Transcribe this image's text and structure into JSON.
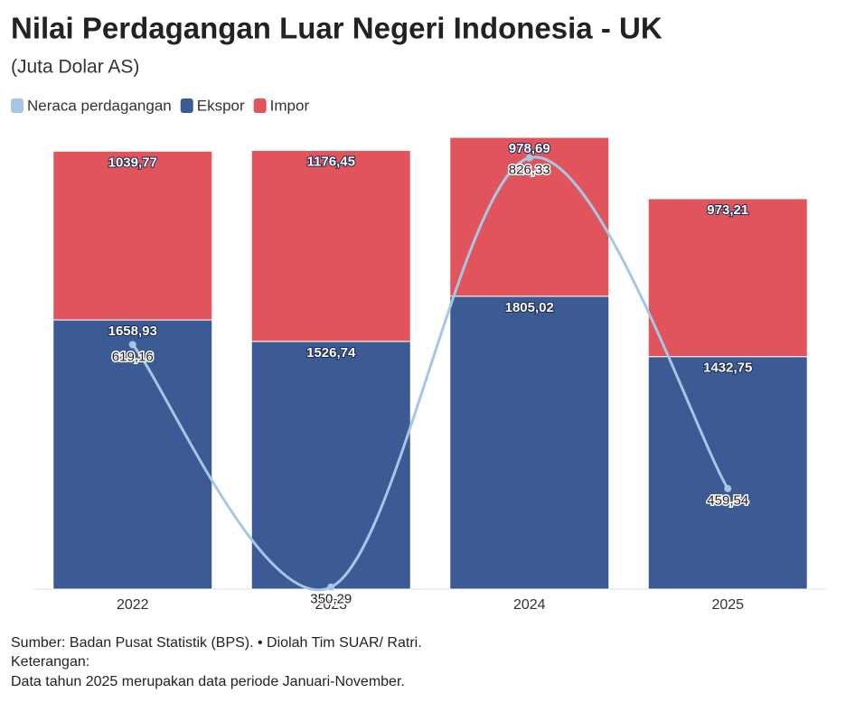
{
  "chart_data": {
    "type": "bar",
    "stacked": true,
    "title": "Nilai Perdagangan Luar Negeri Indonesia - UK",
    "subtitle": "(Juta Dolar AS)",
    "categories": [
      "2022",
      "2023",
      "2024",
      "2025"
    ],
    "series": [
      {
        "name": "Neraca perdagangan",
        "type": "line",
        "axis": "y2",
        "color": "#a6c6e6",
        "values": [
          619.16,
          350.29,
          826.33,
          459.54
        ],
        "value_labels": [
          "619,16",
          "350,29",
          "826,33",
          "459,54"
        ]
      },
      {
        "name": "Ekspor",
        "type": "bar",
        "color": "#3c5a94",
        "values": [
          1658.93,
          1526.74,
          1805.02,
          1432.75
        ],
        "value_labels": [
          "1658,93",
          "1526,74",
          "1805,02",
          "1432,75"
        ]
      },
      {
        "name": "Impor",
        "type": "bar",
        "color": "#e2545c",
        "values": [
          1039.77,
          1176.45,
          978.69,
          973.21
        ],
        "value_labels": [
          "1039,77",
          "1176,45",
          "978,69",
          "973,21"
        ]
      }
    ],
    "ylim": [
      0,
      2784
    ],
    "y2lim": [
      348,
      849
    ],
    "legend": "top-left",
    "source": "Sumber: Badan Pusat Statistik (BPS). • Diolah Tim SUAR/ Ratri.",
    "note_heading": "Keterangan:",
    "note": "Data tahun 2025 merupakan data periode Januari-November."
  }
}
